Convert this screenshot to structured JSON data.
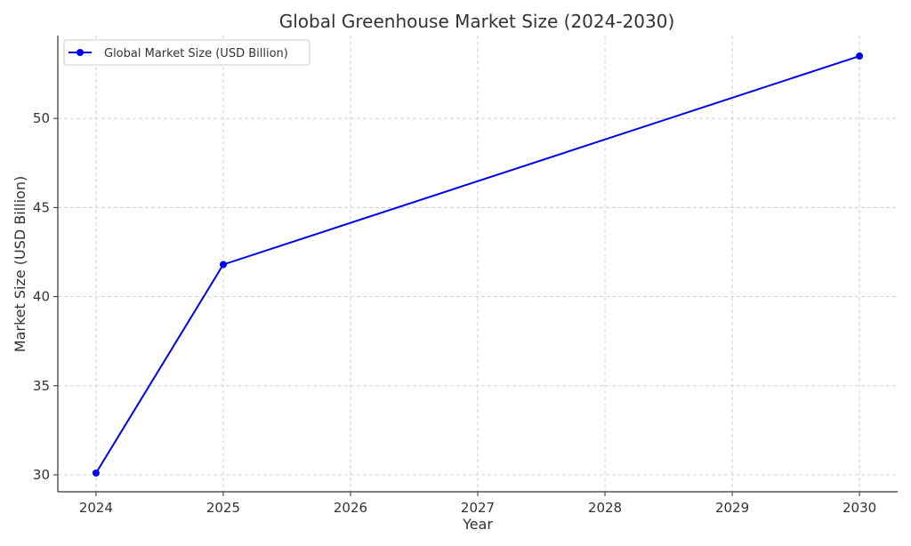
{
  "chart_data": {
    "type": "line",
    "title": "Global Greenhouse Market Size (2024-2030)",
    "xlabel": "Year",
    "ylabel": "Market Size (USD Billion)",
    "x_ticks": [
      "2024",
      "2025",
      "2026",
      "2027",
      "2028",
      "2029",
      "2030"
    ],
    "y_ticks": [
      "30",
      "35",
      "40",
      "45",
      "50"
    ],
    "xlim": [
      2023.7,
      2030.3
    ],
    "ylim": [
      29.05,
      54.65
    ],
    "grid": true,
    "legend_position": "top-left",
    "series": [
      {
        "name": "Global Market Size (USD Billion)",
        "color": "#0000ee",
        "marker": "circle",
        "points": [
          {
            "x": 2024,
            "y": 30.1
          },
          {
            "x": 2025,
            "y": 41.8
          },
          {
            "x": 2030,
            "y": 53.5
          }
        ]
      }
    ]
  }
}
